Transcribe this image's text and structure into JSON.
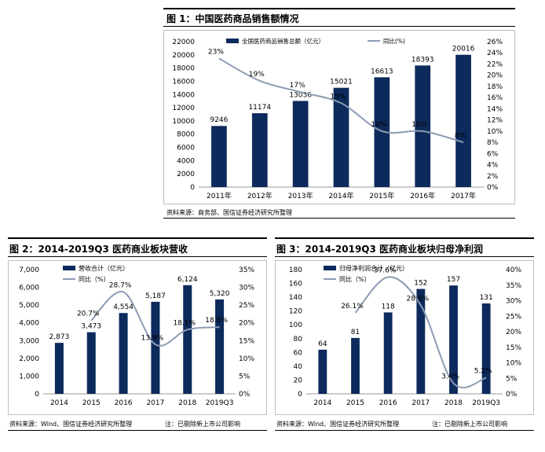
{
  "figure1": {
    "title": "图 1：中国医药商品销售额情况",
    "source": "资料来源：商务部、国信证券经济研究所整理",
    "bar_color": "#0d2a5c",
    "line_color": "#8c9bb3"
  },
  "figure2": {
    "title": "图 2：2014-2019Q3 医药商业板块营收",
    "source": "资料来源：Wind、国信证券经济研究所整理",
    "note": "注：已剔除新上市公司影响"
  },
  "figure3": {
    "title": "图 3：2014-2019Q3 医药商业板块归母净利润",
    "source": "资料来源：Wind、国信证券经济研究所整理",
    "note": "注：已剔除新上市公司影响"
  },
  "chart_data": [
    {
      "type": "bar",
      "categories": [
        "2011年",
        "2012年",
        "2013年",
        "2014年",
        "2015年",
        "2016年",
        "2017年"
      ],
      "series": [
        {
          "name": "全国医药商品销售总额（亿元）",
          "type": "bar",
          "axis": "left",
          "values": [
            9246,
            11174,
            13036,
            15021,
            16613,
            18393,
            20016
          ],
          "labels": [
            "9246",
            "11174",
            "13036",
            "15021",
            "16613",
            "18393",
            "20016"
          ]
        },
        {
          "name": "同比(%)",
          "type": "line",
          "axis": "right",
          "values": [
            23,
            19,
            17,
            15,
            10,
            10,
            8
          ],
          "labels": [
            "23%",
            "19%",
            "17%",
            "15%",
            "10%",
            "10%",
            "8%"
          ]
        }
      ],
      "ylim": [
        0,
        22000
      ],
      "yticks": [
        "0",
        "2000",
        "4000",
        "6000",
        "8000",
        "10000",
        "12000",
        "14000",
        "16000",
        "18000",
        "20000",
        "22000"
      ],
      "y2lim": [
        0,
        26
      ],
      "y2ticks": [
        "0%",
        "2%",
        "4%",
        "6%",
        "8%",
        "10%",
        "12%",
        "14%",
        "16%",
        "18%",
        "20%",
        "22%",
        "24%",
        "26%"
      ],
      "legend": "top"
    },
    {
      "type": "bar",
      "categories": [
        "2014",
        "2015",
        "2016",
        "2017",
        "2018",
        "2019Q3"
      ],
      "series": [
        {
          "name": "营收合计（亿元）",
          "type": "bar",
          "axis": "left",
          "values": [
            2873,
            3473,
            4554,
            5187,
            6124,
            5320
          ],
          "labels": [
            "2,873",
            "3,473",
            "4,554",
            "5,187",
            "6,124",
            "5,320"
          ]
        },
        {
          "name": "同比（%）",
          "type": "line",
          "axis": "right",
          "values": [
            null,
            20.7,
            28.7,
            13.9,
            18.1,
            18.8
          ],
          "labels": [
            "",
            "20.7%",
            "28.7%",
            "13.9%",
            "18.1%",
            "18.8%"
          ]
        }
      ],
      "ylim": [
        0,
        7000
      ],
      "yticks": [
        "0",
        "1,000",
        "2,000",
        "3,000",
        "4,000",
        "5,000",
        "6,000",
        "7,000"
      ],
      "y2lim": [
        0,
        35
      ],
      "y2ticks": [
        "0%",
        "5%",
        "10%",
        "15%",
        "20%",
        "25%",
        "30%",
        "35%"
      ],
      "legend": "top-left"
    },
    {
      "type": "bar",
      "categories": [
        "2014",
        "2015",
        "2016",
        "2017",
        "2018",
        "2019Q3"
      ],
      "series": [
        {
          "name": "归母净利润合计（亿元）",
          "type": "bar",
          "axis": "left",
          "values": [
            64,
            81,
            118,
            152,
            157,
            131
          ],
          "labels": [
            "64",
            "81",
            "118",
            "152",
            "157",
            "131"
          ]
        },
        {
          "name": "同比（%）",
          "type": "line",
          "axis": "right",
          "values": [
            null,
            26.1,
            37.6,
            28.5,
            3.4,
            5.2
          ],
          "labels": [
            "",
            "26.1%",
            "37.6%",
            "28.5%",
            "3.4%",
            "5.2%"
          ]
        }
      ],
      "ylim": [
        0,
        180
      ],
      "yticks": [
        "0",
        "20",
        "40",
        "60",
        "80",
        "100",
        "120",
        "140",
        "160",
        "180"
      ],
      "y2lim": [
        0,
        40
      ],
      "y2ticks": [
        "0%",
        "5%",
        "10%",
        "15%",
        "20%",
        "25%",
        "30%",
        "35%",
        "40%"
      ],
      "legend": "top-left"
    }
  ]
}
